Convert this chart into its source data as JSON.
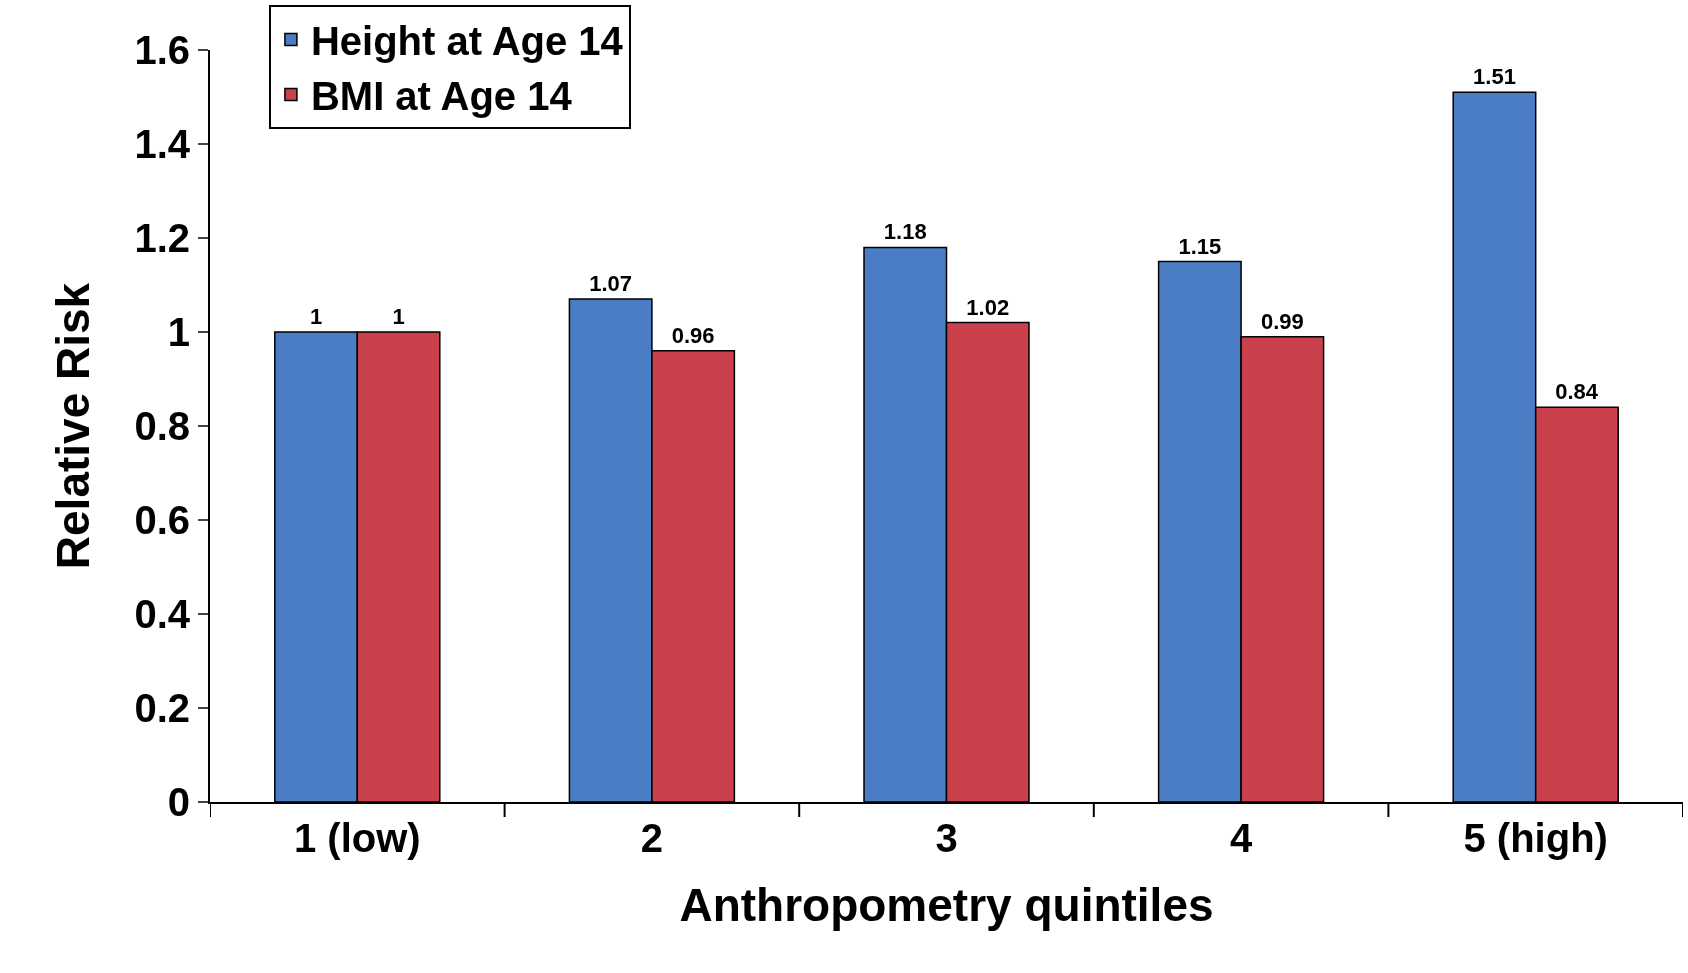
{
  "chart_data": {
    "type": "bar",
    "xlabel": "Anthropometry quintiles",
    "ylabel": "Relative Risk",
    "categories": [
      "1 (low)",
      "2",
      "3",
      "4",
      "5 (high)"
    ],
    "series": [
      {
        "name": "Height at Age 14",
        "color": "#4a7dc3",
        "values": [
          1,
          1.07,
          1.18,
          1.15,
          1.51
        ]
      },
      {
        "name": "BMI at Age 14",
        "color": "#c9414a",
        "values": [
          1,
          0.96,
          1.02,
          0.99,
          0.84
        ]
      }
    ],
    "ylim": [
      0,
      1.6
    ],
    "yticks": [
      0,
      0.2,
      0.4,
      0.6,
      0.8,
      1,
      1.2,
      1.4,
      1.6
    ],
    "data_labels": true,
    "legend": "top left"
  }
}
